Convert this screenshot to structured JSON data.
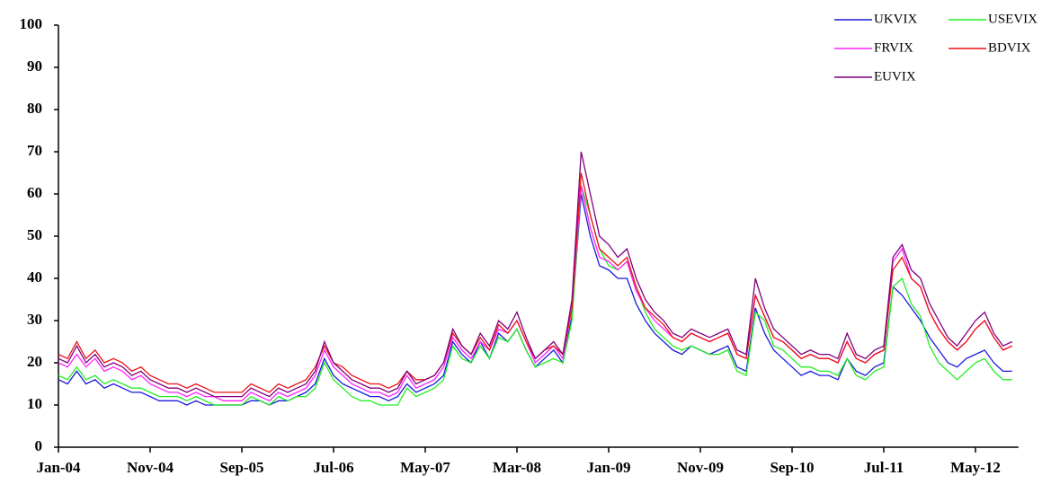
{
  "chart_data": {
    "type": "line",
    "x": [
      "Jan-04",
      null,
      null,
      null,
      null,
      null,
      null,
      null,
      null,
      null,
      "Nov-04",
      null,
      null,
      null,
      null,
      null,
      null,
      null,
      null,
      null,
      "Sep-05",
      null,
      null,
      null,
      null,
      null,
      null,
      null,
      null,
      null,
      "Jul-06",
      null,
      null,
      null,
      null,
      null,
      null,
      null,
      null,
      null,
      "May-07",
      null,
      null,
      null,
      null,
      null,
      null,
      null,
      null,
      null,
      "Mar-08",
      null,
      null,
      null,
      null,
      null,
      null,
      null,
      null,
      null,
      "Jan-09",
      null,
      null,
      null,
      null,
      null,
      null,
      null,
      null,
      null,
      "Nov-09",
      null,
      null,
      null,
      null,
      null,
      null,
      null,
      null,
      null,
      "Sep-10",
      null,
      null,
      null,
      null,
      null,
      null,
      null,
      null,
      null,
      "Jul-11",
      null,
      null,
      null,
      null,
      null,
      null,
      null,
      null,
      null,
      "May-12",
      null,
      null,
      null,
      null
    ],
    "series": [
      {
        "name": "UKVIX",
        "color": "#1a1adc",
        "values": [
          16,
          15,
          18,
          15,
          16,
          14,
          15,
          14,
          13,
          13,
          12,
          11,
          11,
          11,
          10,
          11,
          10,
          10,
          10,
          10,
          10,
          11,
          11,
          10,
          11,
          11,
          12,
          13,
          15,
          21,
          17,
          15,
          14,
          13,
          12,
          12,
          11,
          12,
          15,
          13,
          14,
          15,
          17,
          25,
          22,
          20,
          25,
          21,
          27,
          25,
          28,
          23,
          19,
          21,
          23,
          20,
          31,
          60,
          50,
          43,
          42,
          40,
          40,
          34,
          30,
          27,
          25,
          23,
          22,
          24,
          23,
          22,
          23,
          24,
          19,
          18,
          33,
          27,
          23,
          21,
          19,
          17,
          18,
          17,
          17,
          16,
          21,
          18,
          17,
          19,
          20,
          38,
          36,
          33,
          30,
          26,
          23,
          20,
          19,
          21,
          22,
          23,
          20,
          18,
          18
        ]
      },
      {
        "name": "USEVIX",
        "color": "#22ee22",
        "values": [
          17,
          16,
          19,
          16,
          17,
          15,
          16,
          15,
          14,
          14,
          13,
          12,
          12,
          12,
          11,
          12,
          11,
          10,
          10,
          10,
          10,
          12,
          11,
          10,
          12,
          11,
          12,
          12,
          14,
          20,
          16,
          14,
          12,
          11,
          11,
          10,
          10,
          10,
          14,
          12,
          13,
          14,
          16,
          24,
          21,
          20,
          24,
          21,
          26,
          25,
          28,
          23,
          19,
          20,
          21,
          20,
          30,
          62,
          55,
          47,
          43,
          42,
          44,
          38,
          32,
          28,
          26,
          24,
          23,
          24,
          23,
          22,
          22,
          23,
          18,
          17,
          32,
          30,
          24,
          23,
          21,
          19,
          19,
          18,
          18,
          17,
          21,
          17,
          16,
          18,
          19,
          38,
          40,
          34,
          31,
          24,
          20,
          18,
          16,
          18,
          20,
          21,
          18,
          16,
          16
        ]
      },
      {
        "name": "FRVIX",
        "color": "#ff22ff",
        "values": [
          20,
          19,
          22,
          19,
          21,
          18,
          19,
          18,
          16,
          17,
          15,
          14,
          13,
          13,
          12,
          13,
          12,
          12,
          11,
          11,
          11,
          13,
          12,
          11,
          13,
          12,
          13,
          14,
          17,
          23,
          19,
          17,
          15,
          14,
          13,
          13,
          12,
          13,
          17,
          14,
          15,
          16,
          19,
          26,
          23,
          21,
          25,
          23,
          28,
          27,
          30,
          25,
          20,
          22,
          24,
          21,
          33,
          62,
          52,
          45,
          44,
          42,
          44,
          37,
          33,
          30,
          28,
          26,
          25,
          27,
          26,
          25,
          26,
          27,
          22,
          21,
          36,
          31,
          26,
          25,
          23,
          21,
          22,
          21,
          21,
          20,
          25,
          21,
          20,
          22,
          23,
          44,
          47,
          40,
          38,
          32,
          28,
          25,
          23,
          25,
          28,
          30,
          26,
          23,
          24
        ]
      },
      {
        "name": "BDVIX",
        "color": "#ee1111",
        "values": [
          22,
          21,
          25,
          21,
          23,
          20,
          21,
          20,
          18,
          19,
          17,
          16,
          15,
          15,
          14,
          15,
          14,
          13,
          13,
          13,
          13,
          15,
          14,
          13,
          15,
          14,
          15,
          16,
          19,
          24,
          20,
          19,
          17,
          16,
          15,
          15,
          14,
          15,
          18,
          16,
          16,
          17,
          20,
          27,
          24,
          22,
          26,
          23,
          29,
          27,
          30,
          25,
          21,
          23,
          24,
          22,
          33,
          65,
          55,
          47,
          45,
          43,
          45,
          38,
          33,
          31,
          29,
          26,
          25,
          27,
          26,
          25,
          26,
          27,
          22,
          21,
          36,
          31,
          26,
          25,
          23,
          21,
          22,
          21,
          21,
          20,
          25,
          21,
          20,
          22,
          23,
          42,
          45,
          40,
          38,
          32,
          28,
          25,
          23,
          25,
          28,
          30,
          26,
          23,
          24
        ]
      },
      {
        "name": "EUVIX",
        "color": "#800080",
        "values": [
          21,
          20,
          24,
          20,
          22,
          19,
          20,
          19,
          17,
          18,
          16,
          15,
          14,
          14,
          13,
          14,
          13,
          12,
          12,
          12,
          12,
          14,
          13,
          12,
          14,
          13,
          14,
          15,
          18,
          25,
          20,
          18,
          16,
          15,
          14,
          14,
          13,
          14,
          18,
          15,
          16,
          17,
          20,
          28,
          24,
          22,
          27,
          24,
          30,
          28,
          32,
          26,
          21,
          23,
          25,
          22,
          35,
          70,
          60,
          50,
          48,
          45,
          47,
          40,
          35,
          32,
          30,
          27,
          26,
          28,
          27,
          26,
          27,
          28,
          23,
          22,
          40,
          33,
          28,
          26,
          24,
          22,
          23,
          22,
          22,
          21,
          27,
          22,
          21,
          23,
          24,
          45,
          48,
          42,
          40,
          34,
          30,
          26,
          24,
          27,
          30,
          32,
          27,
          24,
          25
        ]
      }
    ],
    "ylim": [
      0,
      100
    ],
    "yticks": [
      0,
      10,
      20,
      30,
      40,
      50,
      60,
      70,
      80,
      90,
      100
    ],
    "grid": false,
    "legend": "top-right"
  }
}
